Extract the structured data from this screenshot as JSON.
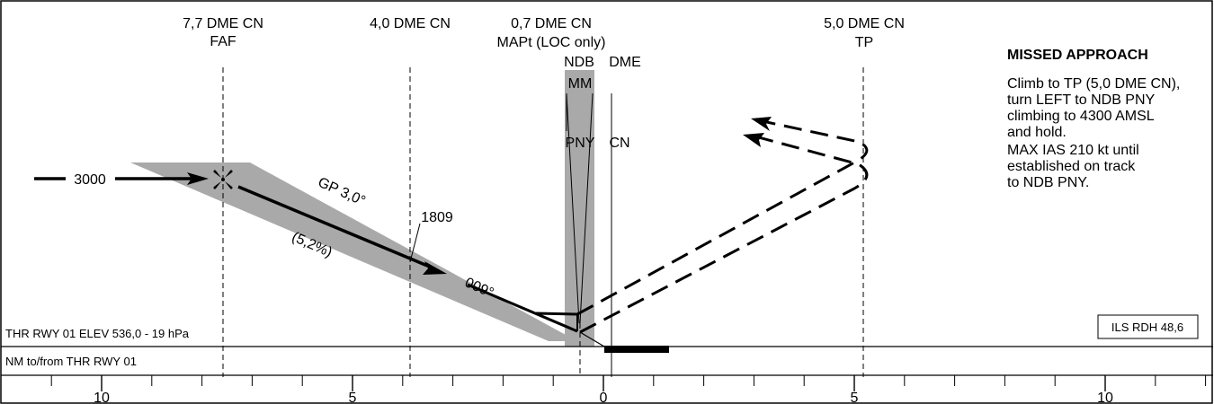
{
  "fixes": [
    {
      "line1": "7,7 DME CN",
      "line2": "FAF"
    },
    {
      "line1": "4,0 DME CN",
      "line2": ""
    },
    {
      "line1": "0,7 DME CN",
      "line2": "MAPt (LOC only)"
    },
    {
      "line1": "5,0 DME CN",
      "line2": "TP"
    }
  ],
  "nav_aids": {
    "ndb_label": "NDB",
    "dme_label": "DME",
    "mm_label": "MM",
    "ndb_ident": "PNY",
    "dme_ident": "CN"
  },
  "approach": {
    "altitude": "3000",
    "glidepath": "GP 3,0°",
    "gradient": "(5,2%)",
    "track": "009°",
    "crossing_altitude": "1809"
  },
  "missed_approach": {
    "title": "MISSED APPROACH",
    "lines": [
      "Climb to TP (5,0 DME CN),",
      "turn LEFT to NDB PNY",
      "climbing to 4300 AMSL",
      "and hold.",
      "MAX IAS 210 kt until",
      "established on track",
      "to NDB PNY."
    ]
  },
  "threshold_info": "THR RWY 01 ELEV 536,0 - 19 hPa",
  "rdh_box": "ILS RDH 48,6",
  "scale_label": "NM to/from THR RWY 01",
  "scale_ticks": [
    "10",
    "5",
    "0",
    "5",
    "10"
  ]
}
